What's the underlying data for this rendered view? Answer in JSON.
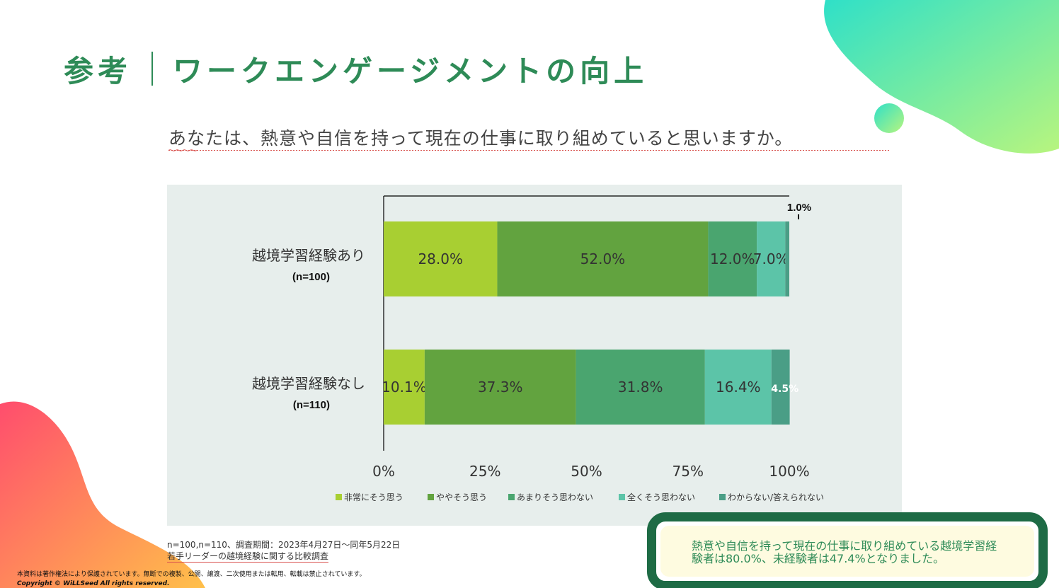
{
  "title": {
    "prefix": "参考",
    "main": "ワークエンゲージメントの向上"
  },
  "question": "あなたは、熱意や自信を持って現在の仕事に取り組めていると思いますか。",
  "chart_data": {
    "type": "bar",
    "orientation": "horizontal",
    "stacked": "percent",
    "categories": [
      {
        "label": "越境学習経験あり",
        "n": "(n=100)"
      },
      {
        "label": "越境学習経験なし",
        "n": "(n=110)"
      }
    ],
    "series": [
      {
        "name": "非常にそう思う",
        "color": "#a8cf32",
        "values": [
          28.0,
          10.1
        ],
        "labels": [
          "28.0%",
          "10.1%"
        ],
        "label_color": "#333333"
      },
      {
        "name": "ややそう思う",
        "color": "#62a33f",
        "values": [
          52.0,
          37.3
        ],
        "labels": [
          "52.0%",
          "37.3%"
        ],
        "label_color": "#333333"
      },
      {
        "name": "あまりそう思わない",
        "color": "#4aa56f",
        "values": [
          12.0,
          31.8
        ],
        "labels": [
          "12.0%",
          "31.8%"
        ],
        "label_color": "#333333"
      },
      {
        "name": "全くそう思わない",
        "color": "#5cc4a8",
        "values": [
          7.0,
          16.4
        ],
        "labels": [
          "7.0%",
          "16.4%"
        ],
        "label_color": "#333333"
      },
      {
        "name": "わからない/答えられない",
        "color": "#4a9e86",
        "values": [
          1.0,
          4.5
        ],
        "labels": [
          "1.0%",
          "4.5%"
        ],
        "label_color": "#ffffff"
      }
    ],
    "xlim": [
      0,
      100
    ],
    "xticks": [
      "0%",
      "25%",
      "50%",
      "75%",
      "100%"
    ],
    "legend": "bottom",
    "grid": false
  },
  "footnote": {
    "line1": "n=100,n=110、調査期間：2023年4月27日～同年5月22日",
    "line2": "若手リーダーの越境経験に関する比較調査"
  },
  "copyright": {
    "line1": "本資料は著作権法により保護されています。無断での複製、公開、譲渡、二次使用または転用、転載は禁止されています。",
    "line2": "Copyright © WiLLSeed All rights reserved."
  },
  "callout": {
    "text": "熱意や自信を持って現在の仕事に取り組めている越境学習経験者は80.0%、未経験者は47.4%となりました。"
  },
  "colors": {
    "title": "#2e8b57",
    "panel": "#e7eeec",
    "callout_border": "#1e6b45",
    "callout_bg": "#fefbe0"
  }
}
